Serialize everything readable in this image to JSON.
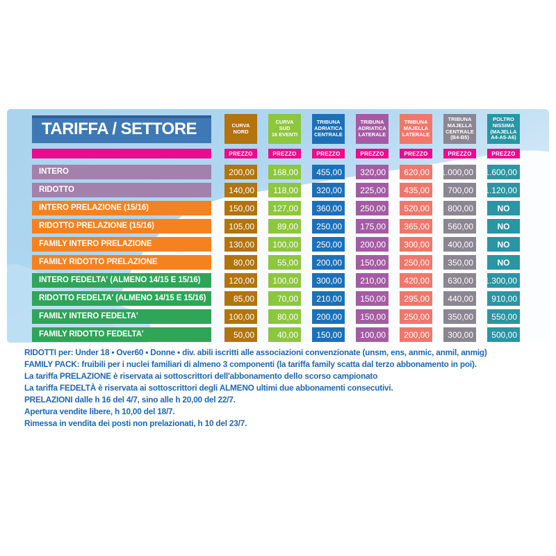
{
  "chart_data": {
    "type": "table",
    "title": "TARIFFA / SETTORE",
    "prezzo_label": "PREZZO",
    "columns": [
      {
        "label": "CURVA\nNORD",
        "color": "#b1740f"
      },
      {
        "label": "CURVA\nSUD\n16 EVENTI",
        "color": "#8dc63f"
      },
      {
        "label": "TRIBUNA\nADRIATICA\nCENTRALE",
        "color": "#1d70b7"
      },
      {
        "label": "TRIBUNA\nADRIATICA\nLATERALE",
        "color": "#a55ba4"
      },
      {
        "label": "TRIBUNA\nMAJELLA\nLATERALE",
        "color": "#f0776b"
      },
      {
        "label": "TRIBUNA\nMAJELLA\nCENTRALE\n(B4-B5)",
        "color": "#8b8692"
      },
      {
        "label": "POLTRO\nNISSIMA\n(MAJELLA\nA4-A5-A6)",
        "color": "#2a95a3"
      }
    ],
    "rows": [
      {
        "label": "INTERO",
        "color": "#a480ad",
        "values": [
          "200,00",
          "168,00",
          "455,00",
          "320,00",
          "620,00",
          "1.000,00",
          "1.600,00"
        ]
      },
      {
        "label": "RIDOTTO",
        "color": "#a480ad",
        "values": [
          "140,00",
          "118,00",
          "320,00",
          "225,00",
          "435,00",
          "700,00",
          "1.120,00"
        ]
      },
      {
        "label": "INTERO PRELAZIONE (15/16)",
        "color": "#f58220",
        "values": [
          "150,00",
          "127,00",
          "360,00",
          "250,00",
          "520,00",
          "800,00",
          "NO"
        ]
      },
      {
        "label": "RIDOTTO PRELAZIONE (15/16)",
        "color": "#f58220",
        "values": [
          "105,00",
          "89,00",
          "250,00",
          "175,00",
          "365,00",
          "560,00",
          "NO"
        ]
      },
      {
        "label": "FAMILY INTERO PRELAZIONE",
        "color": "#f58220",
        "values": [
          "130,00",
          "100,00",
          "250,00",
          "200,00",
          "300,00",
          "400,00",
          "NO"
        ]
      },
      {
        "label": "FAMILY RIDOTTO PRELAZIONE",
        "color": "#f58220",
        "values": [
          "80,00",
          "55,00",
          "200,00",
          "150,00",
          "250,00",
          "350,00",
          "NO"
        ]
      },
      {
        "label": "INTERO FEDELTA' (ALMENO 14/15 E 15/16)",
        "color": "#2fa558",
        "values": [
          "120,00",
          "100,00",
          "300,00",
          "210,00",
          "420,00",
          "630,00",
          "1.300,00"
        ]
      },
      {
        "label": "RIDOTTO FEDELTA' (ALMENO 14/15 E 15/16)",
        "color": "#2fa558",
        "values": [
          "85,00",
          "70,00",
          "210,00",
          "150,00",
          "295,00",
          "440,00",
          "910,00"
        ]
      },
      {
        "label": "FAMILY INTERO FEDELTA'",
        "color": "#2fa558",
        "values": [
          "100,00",
          "80,00",
          "200,00",
          "150,00",
          "250,00",
          "350,00",
          "550,00"
        ]
      },
      {
        "label": "FAMILY RIDOTTO FEDELTA'",
        "color": "#2fa558",
        "values": [
          "50,00",
          "40,00",
          "150,00",
          "100,00",
          "200,00",
          "300,00",
          "500,00"
        ]
      }
    ],
    "notes": [
      "RIDOTTI per:  Under 18 • Over60 • Donne • div. abili iscritti alle associazioni convenzionate (unsm, ens, anmic, anmil, anmig)",
      "FAMILY PACK: fruibili per i nuclei familiari di almeno 3 componenti (la tariffa family scatta dal terzo abbonamento in poi).",
      "La tariffa PRELAZIONE è riservata ai sottoscrittori dell'abbonamento dello scorso campionato",
      "La tariffa FEDELTÀ è riservata ai sottoscrittori degli ALMENO ultimi due abbonamenti consecutivi.",
      "PRELAZIONI dalle h 16 del 4/7, sino alle h 20,00 del 22/7.",
      "Apertura vendite libere, h 10,00 del 18/7.",
      "Rimessa in vendita dei posti non prelazionati, h 10 del 23/7."
    ],
    "colors": {
      "title_bg": "#3e79b6",
      "prezzo_bg": "#ec0a8e",
      "note_text": "#1c67b2",
      "panel_top": "#a9d3ee",
      "panel_bottom": "#f6fbff"
    }
  }
}
